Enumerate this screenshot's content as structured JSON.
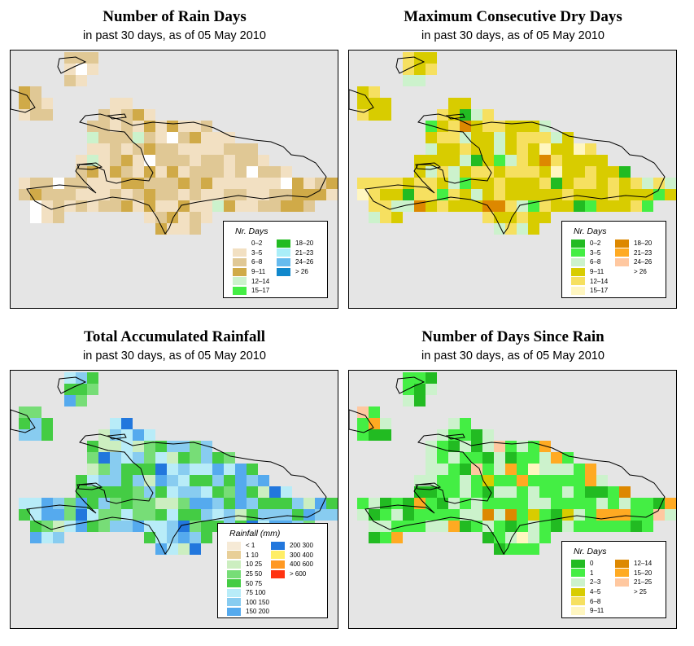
{
  "panels": [
    {
      "id": "rain-days",
      "title": "Number of Rain Days",
      "subtitle": "in past 30 days, as of  05 May 2010",
      "legend_title": "Nr. Days",
      "legend": [
        {
          "label": "0–2",
          "color": "#ffffff"
        },
        {
          "label": "3–5",
          "color": "#f2e0c2"
        },
        {
          "label": "6–8",
          "color": "#e0c895"
        },
        {
          "label": "9–11",
          "color": "#d0aa48"
        },
        {
          "label": "12–14",
          "color": "#ccf2cc"
        },
        {
          "label": "15–17",
          "color": "#44ee44"
        },
        {
          "label": "18–20",
          "color": "#22bb22"
        },
        {
          "label": "21–23",
          "color": "#aaeef8"
        },
        {
          "label": "24–26",
          "color": "#66bbee"
        },
        {
          "label": "> 26",
          "color": "#1188cc"
        }
      ]
    },
    {
      "id": "max-dry-days",
      "title": "Maximum Consecutive Dry Days",
      "subtitle": "in past 30 days, as of  05 May 2010",
      "legend_title": "Nr. Days",
      "legend": [
        {
          "label": "0–2",
          "color": "#22bb22"
        },
        {
          "label": "3–5",
          "color": "#44ee44"
        },
        {
          "label": "6–8",
          "color": "#ccf2cc"
        },
        {
          "label": "9–11",
          "color": "#d8cc00"
        },
        {
          "label": "12–14",
          "color": "#f6e060"
        },
        {
          "label": "15–17",
          "color": "#fff6c0"
        },
        {
          "label": "18–20",
          "color": "#dd8800"
        },
        {
          "label": "21–23",
          "color": "#ffaa22"
        },
        {
          "label": "24–26",
          "color": "#ffc8a0"
        },
        {
          "label": "> 26",
          "color": "#ffffff"
        }
      ]
    },
    {
      "id": "total-rainfall",
      "title": "Total Accumulated Rainfall",
      "subtitle": "in past 30 days, as of  05 May 2010",
      "legend_title": "Rainfall (mm)",
      "legend": [
        {
          "label": "< 1",
          "color": "#f6ead6"
        },
        {
          "label": "1   10",
          "color": "#e8cf98"
        },
        {
          "label": "10   25",
          "color": "#cceec0"
        },
        {
          "label": "25   50",
          "color": "#77dd77"
        },
        {
          "label": "50   75",
          "color": "#44cc44"
        },
        {
          "label": "75  100",
          "color": "#b8ecf8"
        },
        {
          "label": "100  150",
          "color": "#88ccf0"
        },
        {
          "label": "150  200",
          "color": "#55aaee"
        },
        {
          "label": "200  300",
          "color": "#2277dd"
        },
        {
          "label": "300  400",
          "color": "#ffee66"
        },
        {
          "label": "400  600",
          "color": "#ff9922"
        },
        {
          "label": "> 600",
          "color": "#ff3311"
        }
      ]
    },
    {
      "id": "days-since-rain",
      "title": "Number of Days Since Rain",
      "subtitle": "in past 30 days, as of  05 May 2010",
      "legend_title": "Nr. Days",
      "legend": [
        {
          "label": "0",
          "color": "#22bb22"
        },
        {
          "label": "1",
          "color": "#44ee44"
        },
        {
          "label": "2–3",
          "color": "#ccf2cc"
        },
        {
          "label": "4–5",
          "color": "#d8cc00"
        },
        {
          "label": "6–8",
          "color": "#f6e060"
        },
        {
          "label": "9–11",
          "color": "#fff6c0"
        },
        {
          "label": "12–14",
          "color": "#dd8800"
        },
        {
          "label": "15–20",
          "color": "#ffaa22"
        },
        {
          "label": "21–25",
          "color": "#ffc8a0"
        },
        {
          "label": "> 25",
          "color": "#ffffff"
        }
      ]
    }
  ]
}
